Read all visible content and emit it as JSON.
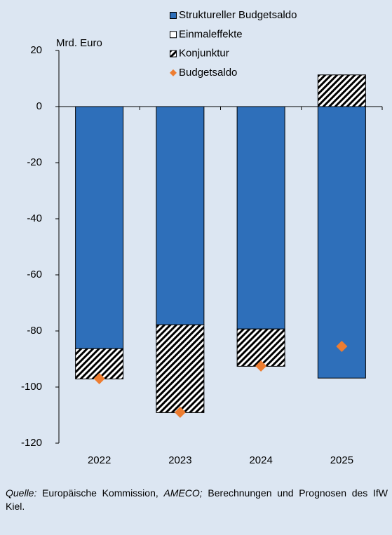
{
  "chart_data": {
    "type": "stacked_bar",
    "y_label": "Mrd. Euro",
    "categories": [
      "2022",
      "2023",
      "2024",
      "2025"
    ],
    "series": [
      {
        "name": "Struktureller Budgetsaldo",
        "color": "#2e6fba",
        "values": [
          -86.3,
          -77.8,
          -79.3,
          -96.8
        ]
      },
      {
        "name": "Einmaleffekte",
        "color": "#ffffff",
        "values": [
          0,
          0,
          0,
          0
        ]
      },
      {
        "name": "Konjunktur",
        "color": "#000000",
        "pattern": "hatch",
        "values": [
          -10.8,
          -31.3,
          -13.3,
          11.3
        ]
      },
      {
        "name": "Budgetsaldo",
        "color": "#ed7d31",
        "kind": "marker",
        "values": [
          -97,
          -109,
          -92.5,
          -85.5
        ]
      }
    ],
    "ylim": [
      -120,
      20
    ],
    "yticks": [
      -120,
      -100,
      -80,
      -60,
      -40,
      -20,
      0,
      20
    ],
    "legend": "top",
    "source": [
      {
        "text": "Quelle:",
        "italic": true
      },
      {
        "text": " Europäische Kommission, ",
        "italic": false
      },
      {
        "text": "AMECO;",
        "italic": true
      },
      {
        "text": " Berechnungen und Prognosen des IfW Kiel.",
        "italic": false
      }
    ]
  }
}
